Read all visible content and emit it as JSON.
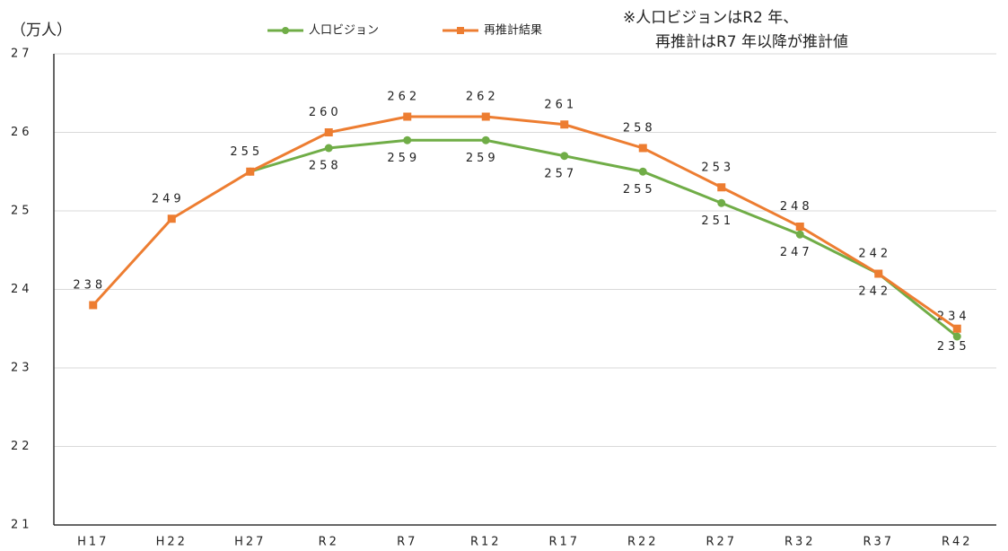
{
  "chart_data": {
    "type": "line",
    "unit_label": "（万人）",
    "annotation": [
      "※人口ビジョンはR2 年、",
      "再推計はR7 年以降が推計値"
    ],
    "categories": [
      "H17",
      "H22",
      "H27",
      "R2",
      "R7",
      "R12",
      "R17",
      "R22",
      "R27",
      "R32",
      "R37",
      "R42"
    ],
    "series": [
      {
        "name": "人口ビジョン",
        "color": "#70ad47",
        "marker": "circle",
        "values": [
          null,
          null,
          25.5,
          25.8,
          25.9,
          25.9,
          25.7,
          25.5,
          25.1,
          24.7,
          24.2,
          23.4
        ],
        "value_labels": [
          null,
          null,
          null,
          "258",
          "259",
          "259",
          "257",
          "255",
          "251",
          "247",
          "242",
          "234"
        ]
      },
      {
        "name": "再推計結果",
        "color": "#ed7d31",
        "marker": "square",
        "values": [
          23.8,
          24.9,
          25.5,
          26.0,
          26.2,
          26.2,
          26.1,
          25.8,
          25.3,
          24.8,
          24.2,
          23.5
        ],
        "value_labels": [
          "238",
          "249",
          "255",
          "260",
          "262",
          "262",
          "261",
          "258",
          "253",
          "248",
          "242",
          "235"
        ]
      }
    ],
    "ylim": [
      21,
      27
    ],
    "yticks": [
      21,
      22,
      23,
      24,
      25,
      26,
      27
    ],
    "grid": true
  }
}
